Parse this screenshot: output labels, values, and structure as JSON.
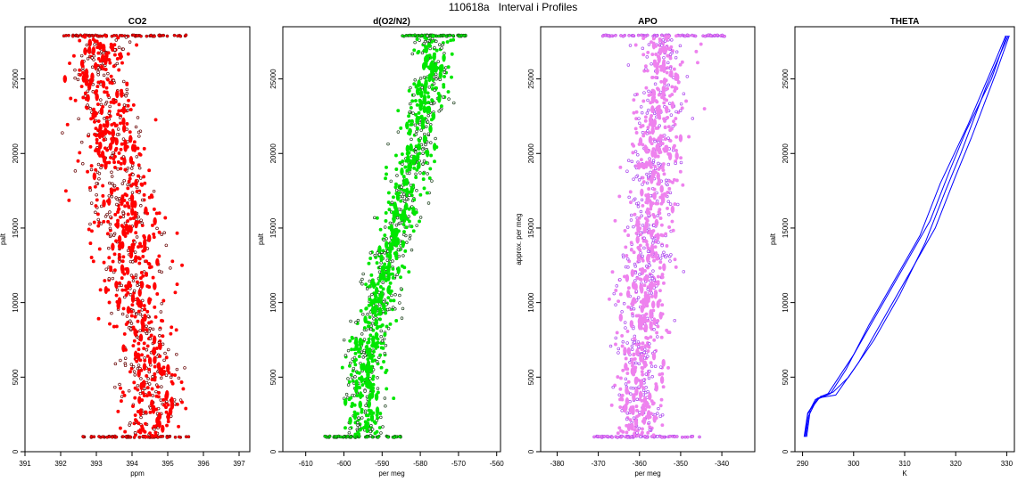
{
  "page_title": "110618a   Interval i Profiles",
  "colors": {
    "co2": "#ff0000",
    "o2n2": "#00e600",
    "apo": "#ee82ee",
    "theta": "#0000ff",
    "outline_dark": "#660000",
    "outline_green": "#224422",
    "outline_apo": "#aa44ee"
  },
  "chart_data": [
    {
      "type": "scatter",
      "title": "CO2",
      "xlabel": "ppm",
      "ylabel": "palt",
      "xlim": [
        391,
        397.3
      ],
      "ylim": [
        0,
        28500
      ],
      "x_ticks": [
        "391",
        "392",
        "393",
        "394",
        "395",
        "396",
        "397"
      ],
      "y_ticks": [
        "0",
        "5000",
        "10000",
        "15000",
        "20000",
        "25000"
      ],
      "series_color": "#ff0000",
      "profile": [
        {
          "y": 1000,
          "x": 394.5,
          "spread": 0.9
        },
        {
          "y": 5000,
          "x": 394.6,
          "spread": 1.0
        },
        {
          "y": 10000,
          "x": 394.1,
          "spread": 1.1
        },
        {
          "y": 15000,
          "x": 393.9,
          "spread": 1.1
        },
        {
          "y": 20000,
          "x": 393.5,
          "spread": 1.1
        },
        {
          "y": 25000,
          "x": 393.1,
          "spread": 1.0
        },
        {
          "y": 27900,
          "x": 393.2,
          "spread": 0.9
        }
      ],
      "flat_segments": [
        {
          "y": 1000,
          "x0": 392.6,
          "x1": 395.6
        },
        {
          "y": 27900,
          "x0": 392.0,
          "x1": 395.6
        }
      ]
    },
    {
      "type": "scatter",
      "title": "d(O2/N2)",
      "xlabel": "per meg",
      "ylabel": "palt",
      "xlim": [
        -616,
        -559
      ],
      "ylim": [
        0,
        28500
      ],
      "x_ticks": [
        "-610",
        "-600",
        "-590",
        "-580",
        "-570",
        "-560"
      ],
      "y_ticks": [
        "0",
        "5000",
        "10000",
        "15000",
        "20000",
        "25000"
      ],
      "series_color": "#00e600",
      "profile": [
        {
          "y": 1000,
          "x": -594,
          "spread": 6
        },
        {
          "y": 5000,
          "x": -595,
          "spread": 6
        },
        {
          "y": 10000,
          "x": -591,
          "spread": 6
        },
        {
          "y": 15000,
          "x": -586,
          "spread": 6
        },
        {
          "y": 20000,
          "x": -581,
          "spread": 6
        },
        {
          "y": 25000,
          "x": -577,
          "spread": 6
        },
        {
          "y": 27900,
          "x": -577,
          "spread": 6
        }
      ],
      "flat_segments": [
        {
          "y": 1000,
          "x0": -605,
          "x1": -585
        },
        {
          "y": 27900,
          "x0": -585,
          "x1": -568
        }
      ]
    },
    {
      "type": "scatter",
      "title": "APO",
      "xlabel": "per meg",
      "ylabel": "approx. per meg",
      "xlim": [
        -384,
        -332
      ],
      "ylim": [
        0,
        28500
      ],
      "x_ticks": [
        "-380",
        "-370",
        "-360",
        "-350",
        "-340"
      ],
      "y_ticks": [
        "0",
        "5000",
        "10000",
        "15000",
        "20000",
        "25000"
      ],
      "series_color": "#ee82ee",
      "profile": [
        {
          "y": 1000,
          "x": -360,
          "spread": 7
        },
        {
          "y": 5000,
          "x": -360,
          "spread": 7
        },
        {
          "y": 10000,
          "x": -359,
          "spread": 7
        },
        {
          "y": 15000,
          "x": -358,
          "spread": 7
        },
        {
          "y": 20000,
          "x": -356,
          "spread": 7
        },
        {
          "y": 25000,
          "x": -354,
          "spread": 7
        },
        {
          "y": 27900,
          "x": -354,
          "spread": 7
        }
      ],
      "flat_segments": [
        {
          "y": 1000,
          "x0": -371,
          "x1": -345
        },
        {
          "y": 27900,
          "x0": -369,
          "x1": -338
        }
      ]
    },
    {
      "type": "line",
      "title": "THETA",
      "xlabel": "K",
      "ylabel": "palt",
      "xlim": [
        288.5,
        331.5
      ],
      "ylim": [
        0,
        28500
      ],
      "x_ticks": [
        "290",
        "300",
        "310",
        "320",
        "330"
      ],
      "y_ticks": [
        "0",
        "5000",
        "10000",
        "15000",
        "20000",
        "25000"
      ],
      "series_color": "#0000ff",
      "series": [
        {
          "points": [
            [
              290.5,
              1000
            ],
            [
              291,
              2500
            ],
            [
              292.5,
              3500
            ],
            [
              295,
              3900
            ],
            [
              300,
              6500
            ],
            [
              305,
              9500
            ],
            [
              310,
              12500
            ],
            [
              315,
              15500
            ],
            [
              319,
              19000
            ],
            [
              322,
              21500
            ],
            [
              327,
              25000
            ],
            [
              330,
              27900
            ]
          ]
        },
        {
          "points": [
            [
              290.8,
              1000
            ],
            [
              291.5,
              2800
            ],
            [
              293.5,
              3700
            ],
            [
              296,
              4000
            ],
            [
              299,
              5000
            ],
            [
              304,
              7500
            ],
            [
              309,
              10500
            ],
            [
              314,
              14000
            ],
            [
              318,
              17500
            ],
            [
              321,
              20000
            ],
            [
              326,
              24500
            ],
            [
              330.3,
              27900
            ]
          ]
        },
        {
          "points": [
            [
              290.3,
              1000
            ],
            [
              291,
              2600
            ],
            [
              293,
              3600
            ],
            [
              296.5,
              3800
            ],
            [
              301,
              6000
            ],
            [
              306,
              9000
            ],
            [
              311,
              12000
            ],
            [
              316,
              15000
            ],
            [
              320,
              18500
            ],
            [
              323,
              21000
            ],
            [
              328,
              25500
            ],
            [
              330.5,
              27900
            ]
          ]
        },
        {
          "points": [
            [
              290.6,
              1000
            ],
            [
              291.2,
              2400
            ],
            [
              292.8,
              3500
            ],
            [
              295.5,
              3900
            ],
            [
              298.5,
              5500
            ],
            [
              303,
              8500
            ],
            [
              308,
              11500
            ],
            [
              313,
              14500
            ],
            [
              317,
              18000
            ],
            [
              322.5,
              22000
            ],
            [
              327.5,
              26000
            ],
            [
              329.8,
              27900
            ]
          ]
        }
      ]
    }
  ]
}
